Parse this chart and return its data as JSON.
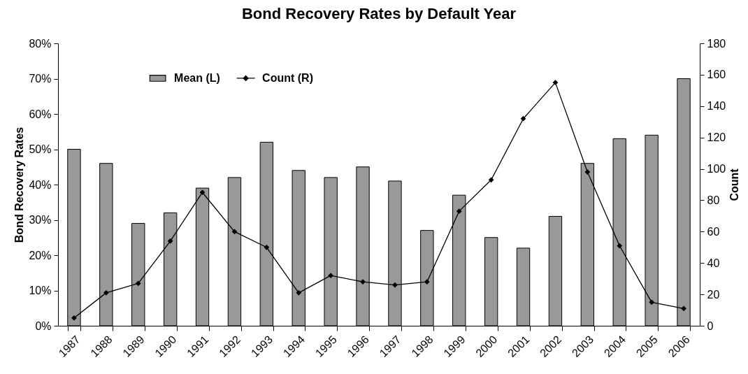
{
  "chart_data": {
    "type": "bar",
    "title": "Bond Recovery Rates by Default Year",
    "ylabel": "Bond Recovery Rates",
    "y2label": "Count",
    "categories": [
      "1987",
      "1988",
      "1989",
      "1990",
      "1991",
      "1992",
      "1993",
      "1994",
      "1995",
      "1996",
      "1997",
      "1998",
      "1999",
      "2000",
      "2001",
      "2002",
      "2003",
      "2004",
      "2005",
      "2006"
    ],
    "series": [
      {
        "name": "Mean (L)",
        "color": "#999999",
        "values": [
          50,
          46,
          29,
          32,
          39,
          42,
          52,
          44,
          42,
          45,
          41,
          27,
          37,
          25,
          22,
          31,
          46,
          53,
          54,
          70
        ]
      },
      {
        "name": "Count (R)",
        "type": "line",
        "axis": "y2",
        "color": "#000000",
        "marker": "diamond",
        "line_style": "solid",
        "values": [
          5,
          21,
          27,
          54,
          85,
          60,
          50,
          21,
          32,
          28,
          26,
          28,
          73,
          93,
          132,
          155,
          98,
          51,
          15,
          11
        ]
      }
    ],
    "ylim": [
      0,
      80
    ],
    "yticks": [
      {
        "value": 0,
        "label": "0%"
      },
      {
        "value": 10,
        "label": "10%"
      },
      {
        "value": 20,
        "label": "20%"
      },
      {
        "value": 30,
        "label": "30%"
      },
      {
        "value": 40,
        "label": "40%"
      },
      {
        "value": 50,
        "label": "50%"
      },
      {
        "value": 60,
        "label": "60%"
      },
      {
        "value": 70,
        "label": "70%"
      },
      {
        "value": 80,
        "label": "80%"
      }
    ],
    "y2lim": [
      0,
      180
    ],
    "y2ticks": [
      0,
      20,
      40,
      60,
      80,
      100,
      120,
      140,
      160,
      180
    ],
    "legend": "top left"
  }
}
